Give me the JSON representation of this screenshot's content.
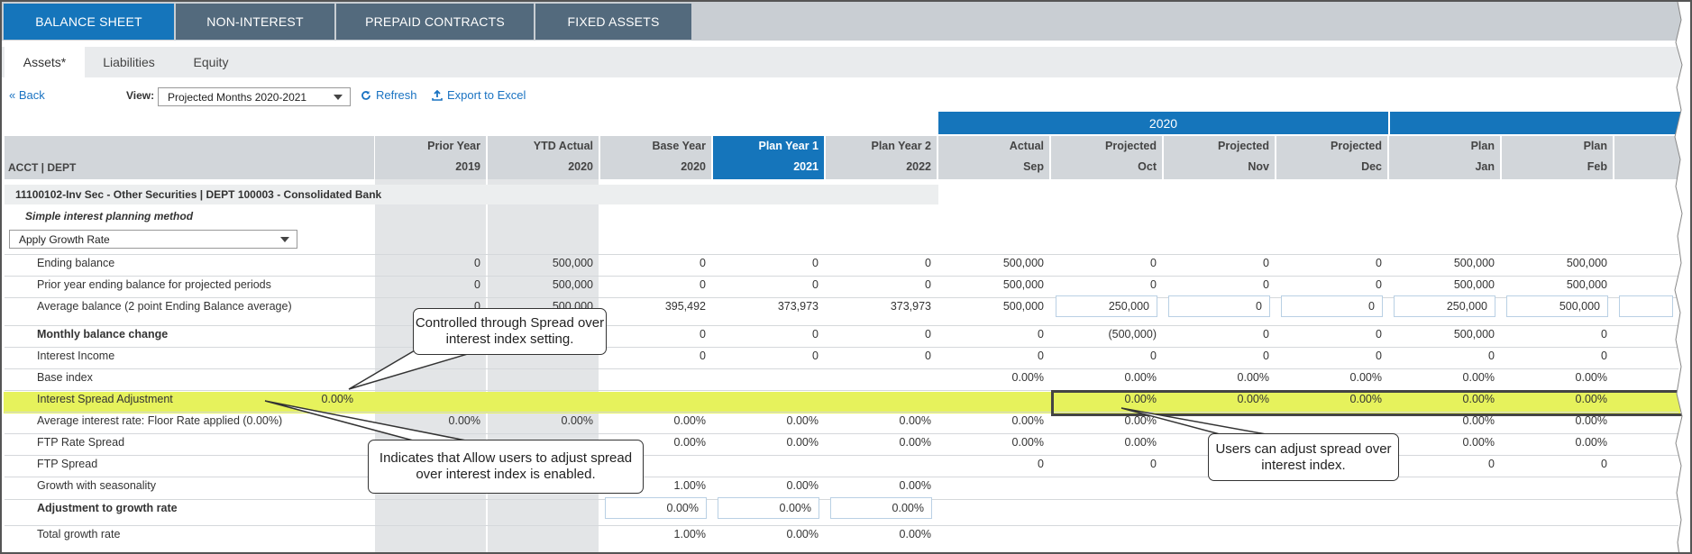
{
  "tabs": [
    "BALANCE SHEET",
    "NON-INTEREST",
    "PREPAID CONTRACTS",
    "FIXED ASSETS"
  ],
  "subtabs": [
    "Assets*",
    "Liabilities",
    "Equity"
  ],
  "toolbar": {
    "back": "« Back",
    "view_label": "View:",
    "view_value": "Projected Months 2020-2021",
    "refresh": "Refresh",
    "export": "Export to Excel"
  },
  "year_band": "2020",
  "grid": {
    "acct_header": "ACCT | DEPT",
    "columns": [
      {
        "l1": "Prior Year",
        "l2": "2019"
      },
      {
        "l1": "YTD Actual",
        "l2": "2020"
      },
      {
        "l1": "Base Year",
        "l2": "2020"
      },
      {
        "l1": "Plan Year 1",
        "l2": "2021"
      },
      {
        "l1": "Plan Year 2",
        "l2": "2022"
      },
      {
        "l1": "Actual",
        "l2": "Sep"
      },
      {
        "l1": "Projected",
        "l2": "Oct"
      },
      {
        "l1": "Projected",
        "l2": "Nov"
      },
      {
        "l1": "Projected",
        "l2": "Dec"
      },
      {
        "l1": "Plan",
        "l2": "Jan"
      },
      {
        "l1": "Plan",
        "l2": "Feb"
      }
    ],
    "account_title": "11100102-Inv Sec - Other Securities | DEPT 100003 - Consolidated Bank",
    "method_label": "Simple interest planning method",
    "method_select": "Apply Growth Rate",
    "rows": [
      {
        "label": "Ending balance",
        "bold": false,
        "values": [
          "0",
          "500,000",
          "0",
          "0",
          "0",
          "500,000",
          "0",
          "0",
          "0",
          "500,000",
          "500,000"
        ]
      },
      {
        "label": "Prior year ending balance for projected periods",
        "bold": false,
        "values": [
          "0",
          "500,000",
          "0",
          "0",
          "0",
          "500,000",
          "0",
          "0",
          "0",
          "500,000",
          "500,000"
        ]
      },
      {
        "label": "Average balance (2 point Ending Balance average)",
        "bold": false,
        "values": [
          "0",
          "500,000",
          "395,492",
          "373,973",
          "373,973",
          "500,000",
          "250,000",
          "0",
          "0",
          "250,000",
          "500,000"
        ]
      },
      {
        "label": "Monthly balance change",
        "bold": true,
        "values": [
          "",
          "",
          "0",
          "0",
          "0",
          "0",
          "(500,000)",
          "0",
          "0",
          "500,000",
          "0"
        ]
      },
      {
        "label": "Interest Income",
        "bold": false,
        "values": [
          "",
          "",
          "0",
          "0",
          "0",
          "0",
          "0",
          "0",
          "0",
          "0",
          "0"
        ]
      },
      {
        "label": "Base index",
        "bold": false,
        "values": [
          "",
          "",
          "",
          "",
          "",
          "0.00%",
          "0.00%",
          "0.00%",
          "0.00%",
          "0.00%",
          "0.00%"
        ]
      },
      {
        "label": "Interest Spread Adjustment",
        "bold": false,
        "first": "0.00%",
        "values": [
          "",
          "",
          "",
          "",
          "",
          "",
          "0.00%",
          "0.00%",
          "0.00%",
          "0.00%",
          "0.00%"
        ]
      },
      {
        "label": "Average interest rate: Floor Rate applied (0.00%)",
        "bold": false,
        "values": [
          "0.00%",
          "0.00%",
          "0.00%",
          "0.00%",
          "0.00%",
          "0.00%",
          "0.00%",
          "",
          "",
          "0.00%",
          "0.00%"
        ]
      },
      {
        "label": "FTP Rate Spread",
        "bold": false,
        "values": [
          "",
          "",
          "0.00%",
          "0.00%",
          "0.00%",
          "0.00%",
          "0.00%",
          "",
          "",
          "0.00%",
          "0.00%"
        ]
      },
      {
        "label": "FTP Spread",
        "bold": false,
        "values": [
          "",
          "",
          "",
          "",
          "",
          "0",
          "0",
          "",
          "",
          "0",
          "0"
        ]
      },
      {
        "label": "Growth with seasonality",
        "bold": false,
        "values": [
          "",
          "",
          "1.00%",
          "0.00%",
          "0.00%",
          "",
          "",
          "",
          "",
          "",
          ""
        ]
      },
      {
        "label": "Adjustment to growth rate",
        "bold": true,
        "values": [
          "",
          "",
          "0.00%",
          "0.00%",
          "0.00%",
          "",
          "",
          "",
          "",
          "",
          ""
        ]
      },
      {
        "label": "Total growth rate",
        "bold": false,
        "values": [
          "",
          "",
          "1.00%",
          "0.00%",
          "0.00%",
          "",
          "",
          "",
          "",
          "",
          ""
        ]
      }
    ]
  },
  "callouts": {
    "spread_setting": "Controlled through Spread over interest index setting.",
    "allow_users": "Indicates that Allow users to adjust spread over interest index is enabled.",
    "users_adjust": "Users can adjust spread over interest index."
  },
  "colors": {
    "active_tab": "#1575bb",
    "inactive_tab": "#536a7d",
    "highlight": "#e6f25c"
  }
}
